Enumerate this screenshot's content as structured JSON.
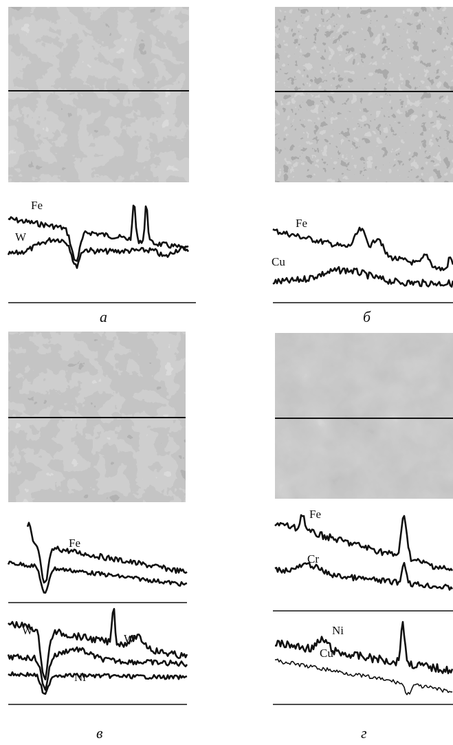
{
  "panels": [
    {
      "letter": "а",
      "plots": [
        {
          "labels": [
            "Fe",
            "W"
          ]
        }
      ]
    },
    {
      "letter": "б",
      "plots": [
        {
          "labels": [
            "Fe",
            "Cu"
          ]
        }
      ]
    },
    {
      "letter": "в",
      "plots": [
        {
          "labels": [
            "Fe"
          ]
        },
        {
          "labels": [
            "W",
            "W",
            "Ni"
          ]
        }
      ]
    },
    {
      "letter": "г",
      "plots": [
        {
          "labels": [
            "Fe",
            "Cr"
          ]
        },
        {
          "labels": [
            "Ni",
            "Cu"
          ]
        }
      ]
    }
  ]
}
